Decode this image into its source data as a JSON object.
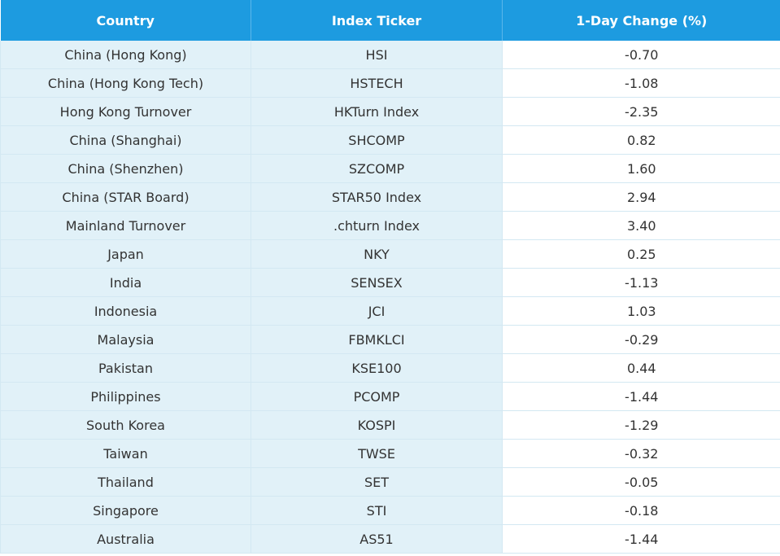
{
  "table": {
    "header": [
      "Country",
      "Index Ticker",
      "1-Day Change (%)"
    ],
    "rows": [
      [
        "China (Hong Kong)",
        "HSI",
        "-0.70"
      ],
      [
        "China (Hong Kong Tech)",
        "HSTECH",
        "-1.08"
      ],
      [
        "Hong Kong Turnover",
        "HKTurn Index",
        "-2.35"
      ],
      [
        "China (Shanghai)",
        "SHCOMP",
        "0.82"
      ],
      [
        "China (Shenzhen)",
        "SZCOMP",
        "1.60"
      ],
      [
        "China (STAR Board)",
        "STAR50 Index",
        "2.94"
      ],
      [
        "Mainland Turnover",
        ".chturn Index",
        "3.40"
      ],
      [
        "Japan",
        "NKY",
        "0.25"
      ],
      [
        "India",
        "SENSEX",
        "-1.13"
      ],
      [
        "Indonesia",
        "JCI",
        "1.03"
      ],
      [
        "Malaysia",
        "FBMKLCI",
        "-0.29"
      ],
      [
        "Pakistan",
        "KSE100",
        "0.44"
      ],
      [
        "Philippines",
        "PCOMP",
        "-1.44"
      ],
      [
        "South Korea",
        "KOSPI",
        "-1.29"
      ],
      [
        "Taiwan",
        "TWSE",
        "-0.32"
      ],
      [
        "Thailand",
        "SET",
        "-0.05"
      ],
      [
        "Singapore",
        "STI",
        "-0.18"
      ],
      [
        "Australia",
        "AS51",
        "-1.44"
      ]
    ]
  }
}
